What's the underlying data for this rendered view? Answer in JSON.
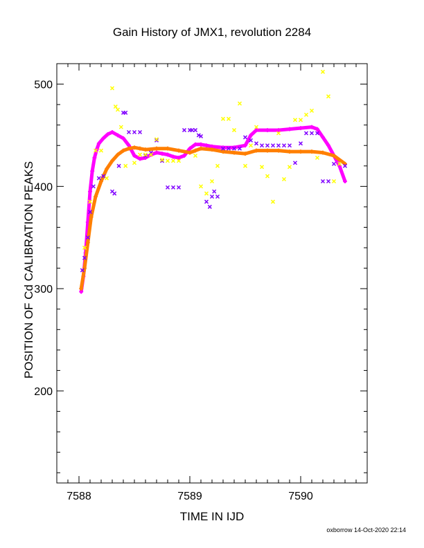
{
  "chart_data": {
    "type": "scatter",
    "title": "Gain History of JMX1, revolution 2284",
    "xlabel": "TIME IN IJD",
    "ylabel": "POSITION OF Cd CALIBRATION PEAKS",
    "xlim": [
      7587.8,
      7590.6
    ],
    "ylim": [
      110,
      520
    ],
    "x_ticks": [
      7588,
      7589,
      7590
    ],
    "y_ticks": [
      200,
      300,
      400,
      500
    ],
    "grid": false,
    "legend": "none",
    "series": [
      {
        "color": "#ff00ff",
        "marker": "line-cross",
        "x": [
          7588.02,
          7588.04,
          7588.06,
          7588.08,
          7588.1,
          7588.12,
          7588.14,
          7588.16,
          7588.18,
          7588.22,
          7588.26,
          7588.3,
          7588.35,
          7588.4,
          7588.45,
          7588.5,
          7588.55,
          7588.6,
          7588.65,
          7588.7,
          7588.75,
          7588.8,
          7588.85,
          7588.9,
          7588.95,
          7589.0,
          7589.05,
          7589.1,
          7589.15,
          7589.2,
          7589.3,
          7589.4,
          7589.5,
          7589.55,
          7589.6,
          7589.7,
          7589.8,
          7589.9,
          7590.0,
          7590.1,
          7590.15,
          7590.2,
          7590.25,
          7590.3,
          7590.35,
          7590.4
        ],
        "y": [
          297,
          312,
          335,
          365,
          395,
          415,
          428,
          436,
          442,
          447,
          451,
          453,
          450,
          447,
          440,
          430,
          427,
          428,
          431,
          433,
          432,
          431,
          429,
          428,
          430,
          437,
          441,
          441,
          440,
          439,
          438,
          438,
          440,
          450,
          455,
          455,
          455,
          456,
          457,
          458,
          456,
          448,
          440,
          430,
          420,
          405
        ]
      },
      {
        "color": "#ff7f00",
        "marker": "line-cross",
        "x": [
          7588.02,
          7588.05,
          7588.08,
          7588.11,
          7588.15,
          7588.2,
          7588.25,
          7588.3,
          7588.35,
          7588.4,
          7588.45,
          7588.5,
          7588.55,
          7588.6,
          7588.7,
          7588.8,
          7588.9,
          7589.0,
          7589.05,
          7589.1,
          7589.2,
          7589.3,
          7589.4,
          7589.5,
          7589.6,
          7589.7,
          7589.8,
          7589.9,
          7590.0,
          7590.1,
          7590.2,
          7590.3,
          7590.4
        ],
        "y": [
          300,
          320,
          345,
          370,
          390,
          405,
          417,
          425,
          431,
          435,
          437,
          438,
          437,
          436,
          437,
          437,
          435,
          433,
          435,
          437,
          436,
          434,
          433,
          432,
          435,
          435,
          435,
          434,
          434,
          434,
          433,
          430,
          422
        ]
      },
      {
        "color": "#8000ff",
        "marker": "x",
        "x": [
          7588.03,
          7588.05,
          7588.08,
          7588.1,
          7588.13,
          7588.18,
          7588.22,
          7588.3,
          7588.32,
          7588.36,
          7588.4,
          7588.42,
          7588.45,
          7588.5,
          7588.55,
          7588.6,
          7588.65,
          7588.7,
          7588.75,
          7588.8,
          7588.85,
          7588.9,
          7588.95,
          7589.0,
          7589.02,
          7589.05,
          7589.08,
          7589.1,
          7589.15,
          7589.18,
          7589.2,
          7589.22,
          7589.25,
          7589.3,
          7589.35,
          7589.4,
          7589.45,
          7589.5,
          7589.55,
          7589.6,
          7589.65,
          7589.7,
          7589.75,
          7589.8,
          7589.85,
          7589.9,
          7589.95,
          7590.0,
          7590.05,
          7590.1,
          7590.15,
          7590.2,
          7590.25,
          7590.3,
          7590.35,
          7590.4
        ],
        "y": [
          318,
          330,
          350,
          375,
          400,
          408,
          410,
          395,
          393,
          420,
          472,
          472,
          453,
          453,
          453,
          430,
          433,
          445,
          425,
          399,
          399,
          399,
          455,
          455,
          455,
          455,
          450,
          449,
          385,
          380,
          390,
          395,
          390,
          437,
          437,
          437,
          437,
          448,
          445,
          442,
          440,
          440,
          440,
          440,
          440,
          440,
          423,
          442,
          452,
          452,
          452,
          405,
          405,
          422,
          422,
          420
        ]
      },
      {
        "color": "#ffff00",
        "marker": "x",
        "x": [
          7588.05,
          7588.1,
          7588.15,
          7588.2,
          7588.25,
          7588.3,
          7588.33,
          7588.35,
          7588.38,
          7588.42,
          7588.5,
          7588.55,
          7588.6,
          7588.65,
          7588.7,
          7588.75,
          7588.8,
          7588.85,
          7588.9,
          7589.05,
          7589.1,
          7589.15,
          7589.2,
          7589.25,
          7589.3,
          7589.35,
          7589.4,
          7589.45,
          7589.5,
          7589.55,
          7589.6,
          7589.65,
          7589.7,
          7589.75,
          7589.8,
          7589.85,
          7589.9,
          7589.95,
          7590.0,
          7590.05,
          7590.1,
          7590.15,
          7590.2,
          7590.25,
          7590.3,
          7590.35
        ],
        "y": [
          340,
          385,
          435,
          435,
          408,
          496,
          478,
          475,
          458,
          420,
          423,
          431,
          431,
          431,
          446,
          426,
          425,
          425,
          425,
          430,
          400,
          393,
          405,
          420,
          466,
          466,
          455,
          481,
          420,
          440,
          458,
          419,
          410,
          385,
          452,
          407,
          419,
          465,
          465,
          470,
          474,
          428,
          512,
          488,
          405,
          422
        ]
      }
    ]
  },
  "footer": {
    "text": "oxborrow 14-Oct-2020 22:14"
  }
}
